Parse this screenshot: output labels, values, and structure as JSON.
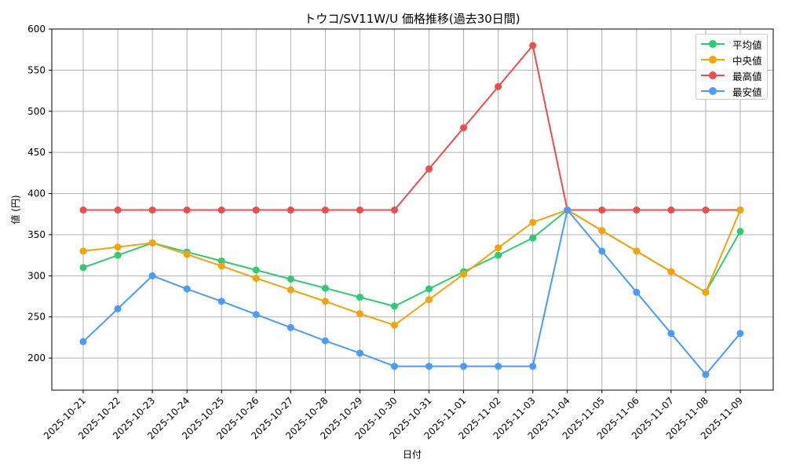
{
  "chart_data": {
    "type": "line",
    "title": "トウコ/SV11W/U 価格推移(過去30日間)",
    "xlabel": "日付",
    "ylabel": "値 (円)",
    "ylim": [
      161,
      600
    ],
    "yticks": [
      200,
      250,
      300,
      350,
      400,
      450,
      500,
      550,
      600
    ],
    "grid": true,
    "legend_position": "upper right",
    "x": [
      "2025-10-21",
      "2025-10-22",
      "2025-10-23",
      "2025-10-24",
      "2025-10-25",
      "2025-10-26",
      "2025-10-27",
      "2025-10-28",
      "2025-10-29",
      "2025-10-30",
      "2025-10-31",
      "2025-11-01",
      "2025-11-02",
      "2025-11-03",
      "2025-11-04",
      "2025-11-05",
      "2025-11-06",
      "2025-11-07",
      "2025-11-08",
      "2025-11-09"
    ],
    "series": [
      {
        "name": "平均値",
        "color": "#2ecc71",
        "values": [
          310,
          325,
          340,
          329,
          318,
          307,
          296,
          285,
          274,
          263,
          284,
          305,
          325,
          346,
          380,
          355,
          330,
          305,
          280,
          354
        ]
      },
      {
        "name": "中央値",
        "color": "#f5a30a",
        "values": [
          330,
          335,
          340,
          326,
          312,
          297,
          283,
          269,
          254,
          240,
          271,
          302,
          334,
          365,
          380,
          355,
          330,
          305,
          280,
          380
        ]
      },
      {
        "name": "最高値",
        "color": "#f04c4c",
        "values": [
          380,
          380,
          380,
          380,
          380,
          380,
          380,
          380,
          380,
          380,
          430,
          480,
          530,
          580,
          380,
          380,
          380,
          380,
          380,
          380
        ]
      },
      {
        "name": "最安値",
        "color": "#4b9bff",
        "values": [
          220,
          260,
          300,
          284,
          269,
          253,
          237,
          221,
          206,
          190,
          190,
          190,
          190,
          190,
          380,
          330,
          280,
          230,
          180,
          230
        ]
      }
    ]
  },
  "legend": {
    "items": [
      {
        "label": "平均値",
        "color": "#2ecc71"
      },
      {
        "label": "中央値",
        "color": "#f5a30a"
      },
      {
        "label": "最高値",
        "color": "#f04c4c"
      },
      {
        "label": "最安値",
        "color": "#4b9bff"
      }
    ]
  }
}
